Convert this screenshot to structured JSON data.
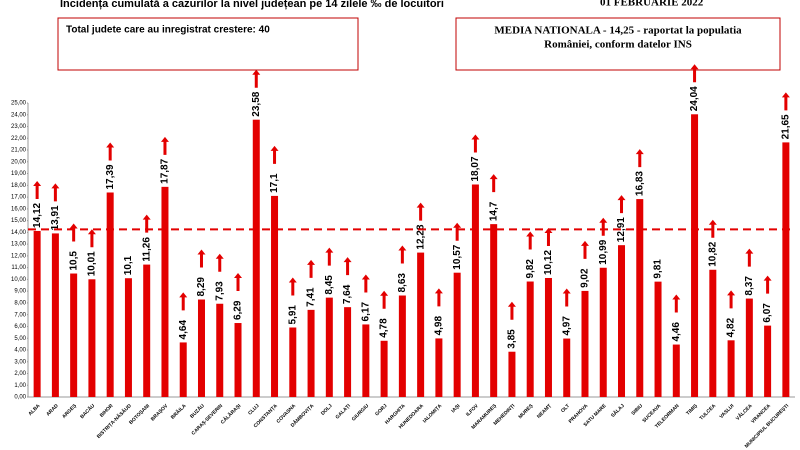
{
  "chart_data": {
    "type": "bar",
    "title": "Incidența cumulată a cazurilor la nivel județean pe 14 zilele ‰ de locuitori",
    "date": "01 FEBRUARIE 2022",
    "note_left": "Total judete care au inregistrat crestere: 40",
    "note_right": [
      "MEDIA NATIONALA - 14,25 -  raportat la populatia",
      "României, conform datelor INS"
    ],
    "mean": 14.25,
    "color": "#e30000",
    "categories": [
      "ALBA",
      "ARAD",
      "ARGEȘ",
      "BACĂU",
      "BIHOR",
      "BISTRIȚA-NĂSĂUD",
      "BOTOȘANI",
      "BRAȘOV",
      "BRĂILA",
      "BUZĂU",
      "CARAȘ-SEVERIN",
      "CĂLĂRAȘI",
      "CLUJ",
      "CONSTANȚA",
      "COVASNA",
      "DÂMBOVIȚA",
      "DOLJ",
      "GALAȚI",
      "GIURGIU",
      "GORJ",
      "HARGHITA",
      "HUNEDOARA",
      "IALOMIȚA",
      "IAȘI",
      "ILFOV",
      "MARAMUREȘ",
      "MEHEDINȚI",
      "MUREȘ",
      "NEAMȚ",
      "OLT",
      "PRAHOVA",
      "SATU MARE",
      "SĂLAJ",
      "SIBIU",
      "SUCEAVA",
      "TELEORMAN",
      "TIMIȘ",
      "TULCEA",
      "VASLUI",
      "VÂLCEA",
      "VRANCEA",
      "MUNICIPIUL BUCUREȘTI"
    ],
    "values": [
      14.12,
      13.91,
      10.5,
      10.01,
      17.39,
      10.1,
      11.26,
      17.87,
      4.64,
      8.29,
      7.93,
      6.29,
      23.58,
      17.1,
      5.91,
      7.41,
      8.45,
      7.64,
      6.17,
      4.78,
      8.63,
      12.28,
      4.98,
      10.57,
      18.07,
      14.7,
      3.85,
      9.82,
      10.12,
      4.97,
      9.02,
      10.99,
      12.91,
      16.83,
      9.81,
      4.46,
      24.04,
      10.82,
      4.82,
      8.37,
      6.07,
      21.65
    ],
    "value_labels": [
      "14,12",
      "13,91",
      "10,5",
      "10,01",
      "17,39",
      "10,1",
      "11,26",
      "17,87",
      "4,64",
      "8,29",
      "7,93",
      "6,29",
      "23,58",
      "17,1",
      "5,91",
      "7,41",
      "8,45",
      "7,64",
      "6,17",
      "4,78",
      "8,63",
      "12,28",
      "4,98",
      "10,57",
      "18,07",
      "14,7",
      "3,85",
      "9,82",
      "10,12",
      "4,97",
      "9,02",
      "10,99",
      "12,91",
      "16,83",
      "9,81",
      "4,46",
      "24,04",
      "10,82",
      "4,82",
      "8,37",
      "6,07",
      "21,65"
    ],
    "increase": [
      true,
      true,
      true,
      true,
      true,
      false,
      true,
      true,
      true,
      true,
      true,
      true,
      true,
      true,
      true,
      true,
      true,
      true,
      true,
      true,
      true,
      true,
      true,
      true,
      true,
      true,
      true,
      true,
      true,
      true,
      true,
      true,
      true,
      true,
      false,
      true,
      true,
      true,
      true,
      true,
      true,
      true
    ],
    "ylim": [
      0,
      25
    ],
    "yticks": [
      {
        "value": 0,
        "label": "0,00"
      },
      {
        "value": 1,
        "label": "1,00"
      },
      {
        "value": 2,
        "label": "2,00"
      },
      {
        "value": 3,
        "label": "3,00"
      },
      {
        "value": 4,
        "label": "4,00"
      },
      {
        "value": 5,
        "label": "5,00"
      },
      {
        "value": 6,
        "label": "6,00"
      },
      {
        "value": 7,
        "label": "7,00"
      },
      {
        "value": 8,
        "label": "8,00"
      },
      {
        "value": 9,
        "label": "9,00"
      },
      {
        "value": 10,
        "label": "10,00"
      },
      {
        "value": 11,
        "label": "11,00"
      },
      {
        "value": 12,
        "label": "12,00"
      },
      {
        "value": 13,
        "label": "13,00"
      },
      {
        "value": 14,
        "label": "14,00"
      },
      {
        "value": 15,
        "label": "15,00"
      },
      {
        "value": 16,
        "label": "16,00"
      },
      {
        "value": 17,
        "label": "17,00"
      },
      {
        "value": 18,
        "label": "18,00"
      },
      {
        "value": 19,
        "label": "19,00"
      },
      {
        "value": 20,
        "label": "20,00"
      },
      {
        "value": 21,
        "label": "21,00"
      },
      {
        "value": 22,
        "label": "22,00"
      },
      {
        "value": 23,
        "label": "23,00"
      },
      {
        "value": 24,
        "label": "24,00"
      },
      {
        "value": 25,
        "label": "25,00"
      }
    ]
  }
}
